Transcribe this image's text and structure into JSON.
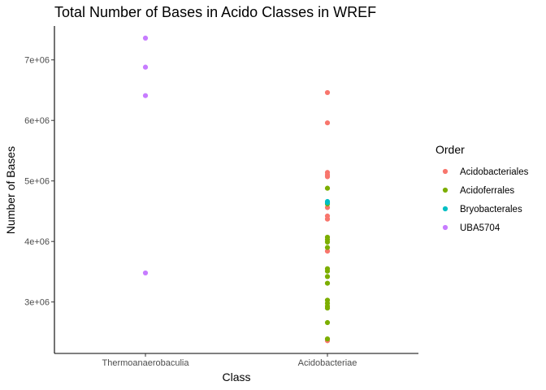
{
  "chart_data": {
    "type": "scatter",
    "title": "Total Number of Bases in Acido Classes in WREF",
    "xlabel": "Class",
    "ylabel": "Number of Bases",
    "categories": [
      "Thermoanaerobaculia",
      "Acidobacteriae"
    ],
    "ylim": [
      2150000,
      7560000
    ],
    "yticks": [
      {
        "value": 3000000,
        "label": "3e+06"
      },
      {
        "value": 4000000,
        "label": "4e+06"
      },
      {
        "value": 5000000,
        "label": "5e+06"
      },
      {
        "value": 6000000,
        "label": "6e+06"
      },
      {
        "value": 7000000,
        "label": "7e+06"
      }
    ],
    "grid": false,
    "legend": {
      "title": "Order",
      "position": "right"
    },
    "series": [
      {
        "name": "Acidobacteriales",
        "color": "#F8766D",
        "points": [
          {
            "x": "Acidobacteriae",
            "y": 6460000
          },
          {
            "x": "Acidobacteriae",
            "y": 5960000
          },
          {
            "x": "Acidobacteriae",
            "y": 5140000
          },
          {
            "x": "Acidobacteriae",
            "y": 5100000
          },
          {
            "x": "Acidobacteriae",
            "y": 5070000
          },
          {
            "x": "Acidobacteriae",
            "y": 4560000
          },
          {
            "x": "Acidobacteriae",
            "y": 4420000
          },
          {
            "x": "Acidobacteriae",
            "y": 4370000
          },
          {
            "x": "Acidobacteriae",
            "y": 3840000
          },
          {
            "x": "Acidobacteriae",
            "y": 2360000
          }
        ]
      },
      {
        "name": "Acidoferrales",
        "color": "#7CAE00",
        "points": [
          {
            "x": "Acidobacteriae",
            "y": 4880000
          },
          {
            "x": "Acidobacteriae",
            "y": 4620000
          },
          {
            "x": "Acidobacteriae",
            "y": 4070000
          },
          {
            "x": "Acidobacteriae",
            "y": 4030000
          },
          {
            "x": "Acidobacteriae",
            "y": 3990000
          },
          {
            "x": "Acidobacteriae",
            "y": 3900000
          },
          {
            "x": "Acidobacteriae",
            "y": 3550000
          },
          {
            "x": "Acidobacteriae",
            "y": 3510000
          },
          {
            "x": "Acidobacteriae",
            "y": 3420000
          },
          {
            "x": "Acidobacteriae",
            "y": 3310000
          },
          {
            "x": "Acidobacteriae",
            "y": 3030000
          },
          {
            "x": "Acidobacteriae",
            "y": 2980000
          },
          {
            "x": "Acidobacteriae",
            "y": 2930000
          },
          {
            "x": "Acidobacteriae",
            "y": 2900000
          },
          {
            "x": "Acidobacteriae",
            "y": 2660000
          },
          {
            "x": "Acidobacteriae",
            "y": 2390000
          }
        ]
      },
      {
        "name": "Bryobacterales",
        "color": "#00BFC4",
        "points": [
          {
            "x": "Acidobacteriae",
            "y": 4660000
          },
          {
            "x": "Acidobacteriae",
            "y": 4640000
          }
        ]
      },
      {
        "name": "UBA5704",
        "color": "#C77CFF",
        "points": [
          {
            "x": "Thermoanaerobaculia",
            "y": 7360000
          },
          {
            "x": "Thermoanaerobaculia",
            "y": 6880000
          },
          {
            "x": "Thermoanaerobaculia",
            "y": 6410000
          },
          {
            "x": "Thermoanaerobaculia",
            "y": 3480000
          }
        ]
      }
    ]
  }
}
